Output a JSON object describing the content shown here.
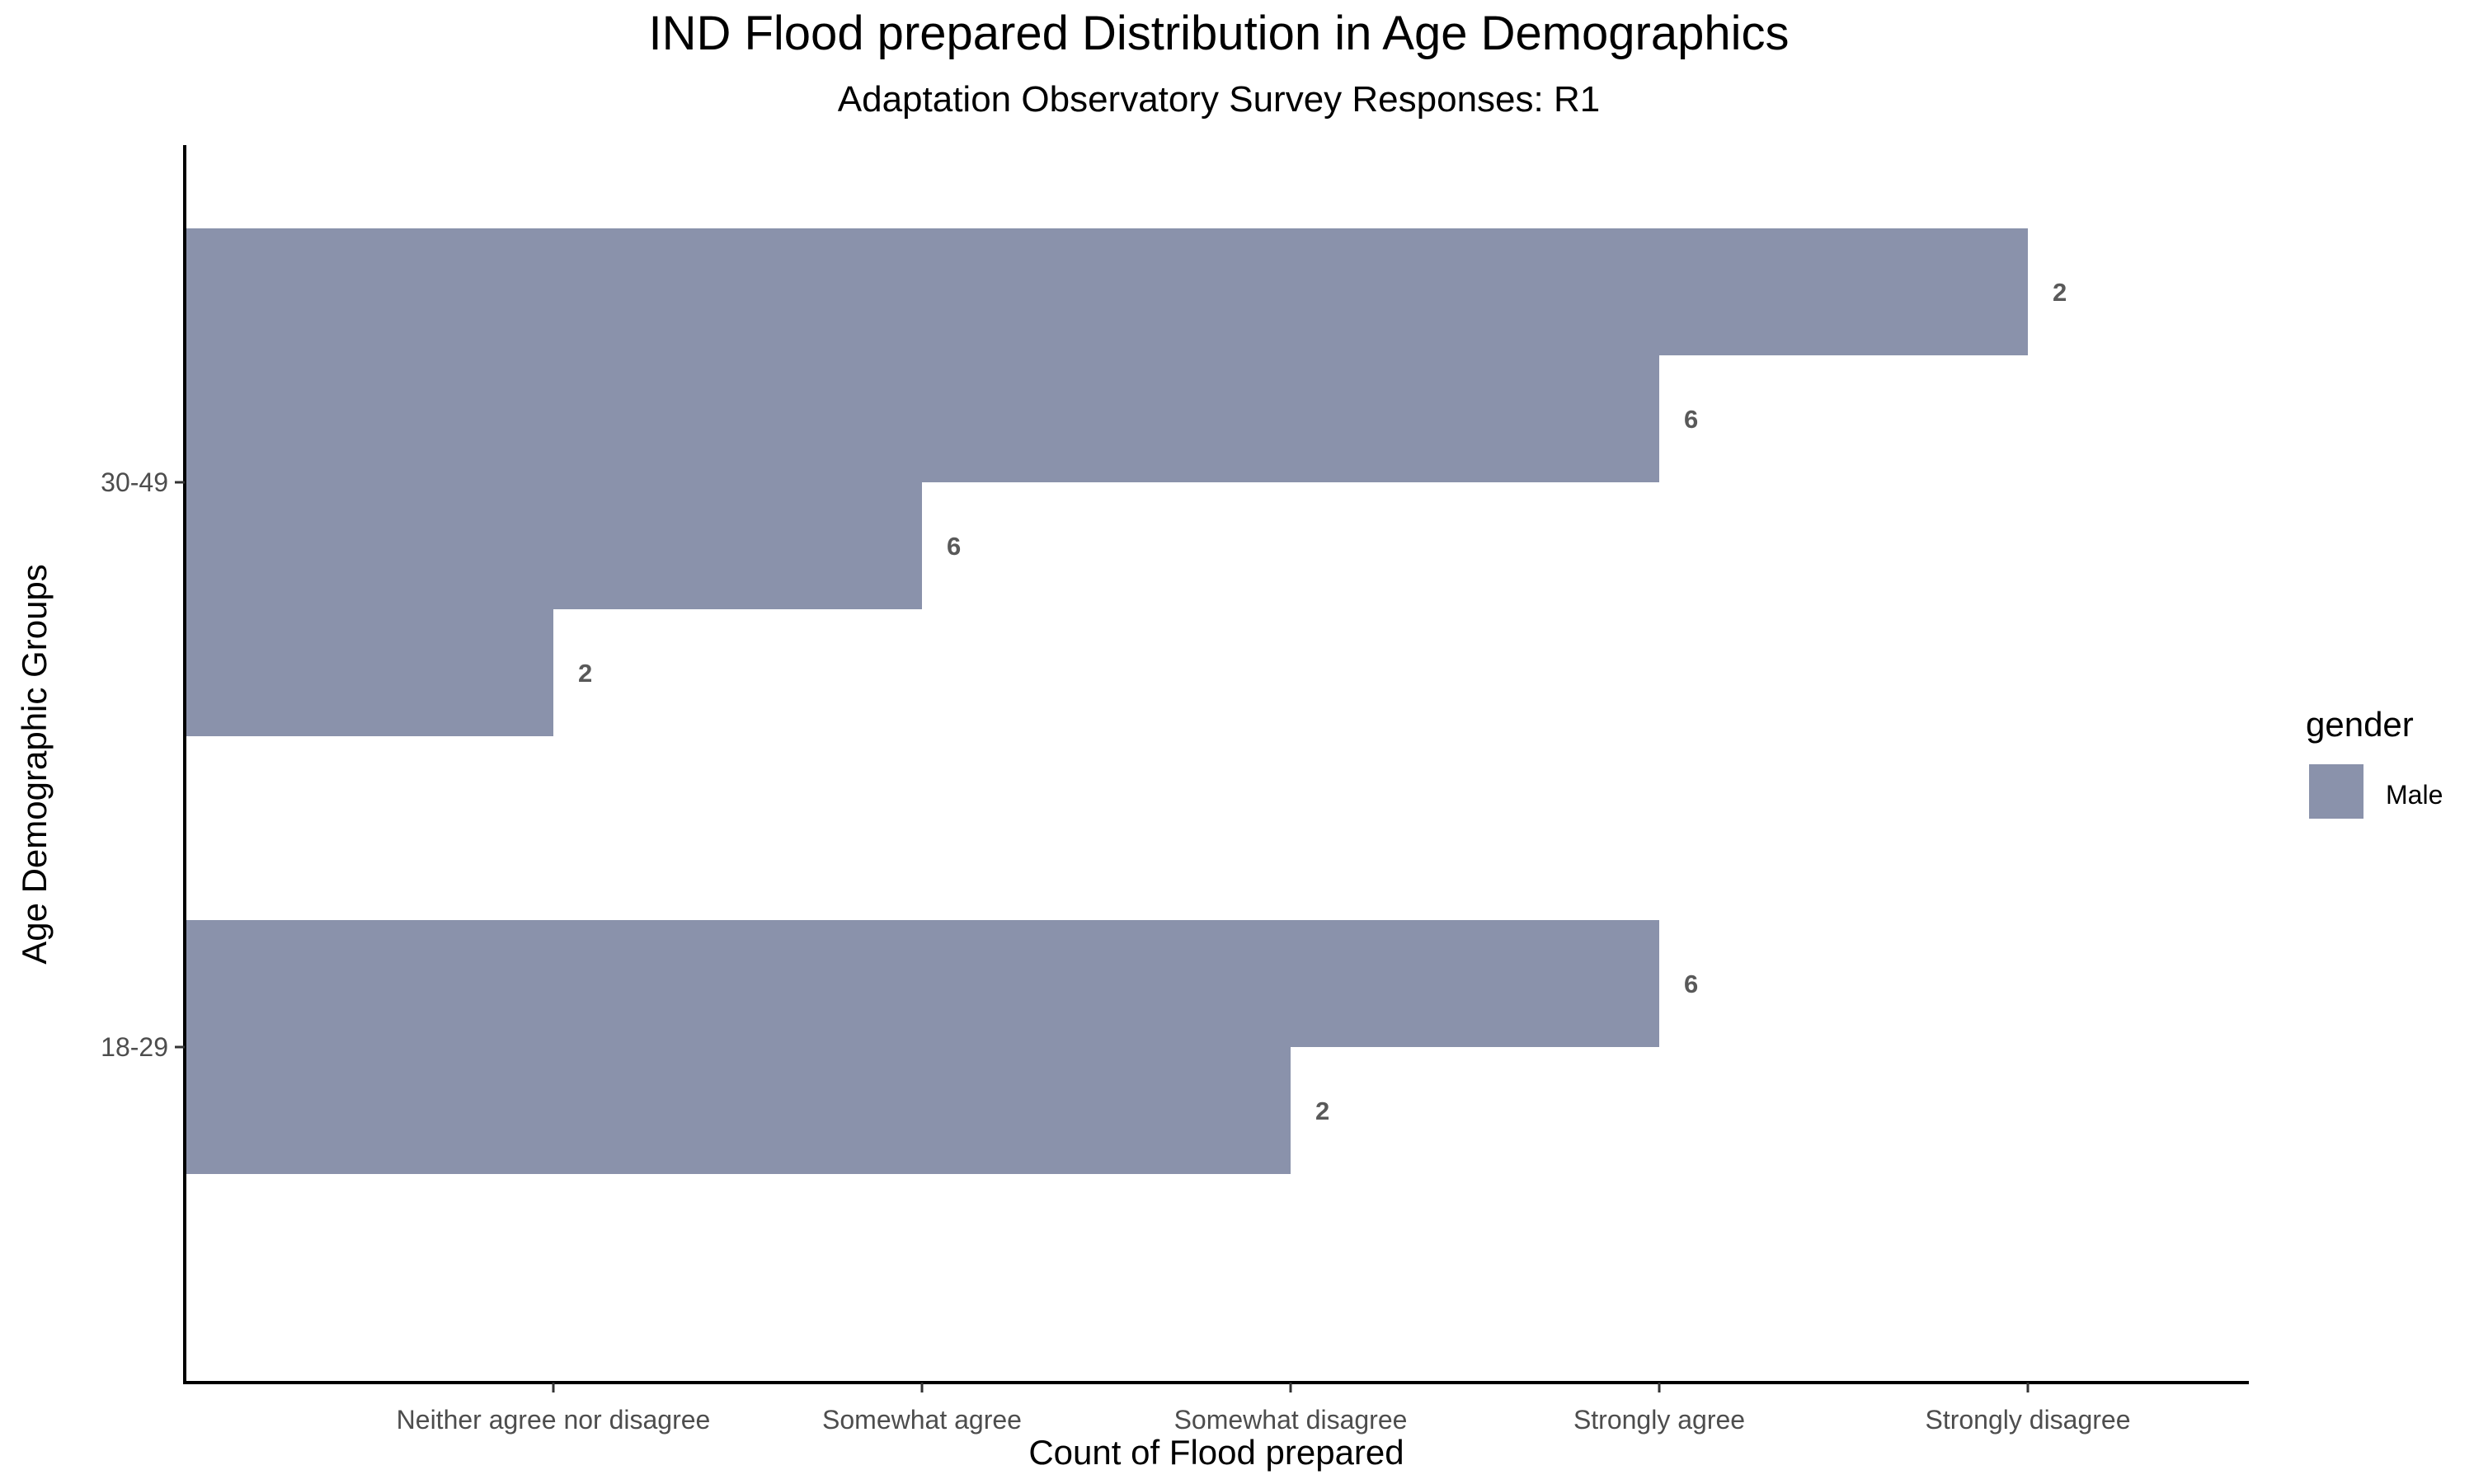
{
  "chart_data": {
    "type": "bar",
    "orientation": "horizontal",
    "title": "IND Flood prepared Distribution in Age Demographics",
    "subtitle": "Adaptation Observatory Survey Responses: R1",
    "xlabel": "Count of Flood prepared",
    "ylabel": "Age Demographic Groups",
    "x_categories": [
      "Neither agree nor disagree",
      "Somewhat agree",
      "Somewhat disagree",
      "Strongly agree",
      "Strongly disagree"
    ],
    "y_categories": [
      "18-29",
      "30-49"
    ],
    "legend": {
      "title": "gender",
      "position": "right",
      "entries": [
        {
          "label": "Male",
          "color": "#8a92ab"
        }
      ]
    },
    "groups": [
      {
        "group": "30-49",
        "bars": [
          {
            "response": "Strongly disagree",
            "count": 2
          },
          {
            "response": "Strongly agree",
            "count": 6
          },
          {
            "response": "Somewhat agree",
            "count": 6
          },
          {
            "response": "Neither agree nor disagree",
            "count": 2
          }
        ]
      },
      {
        "group": "18-29",
        "bars": [
          {
            "response": "Strongly agree",
            "count": 6
          },
          {
            "response": "Somewhat disagree",
            "count": 2
          }
        ]
      }
    ],
    "bar_color": "#8a92ab",
    "label_color": "#595959",
    "grid": false
  }
}
